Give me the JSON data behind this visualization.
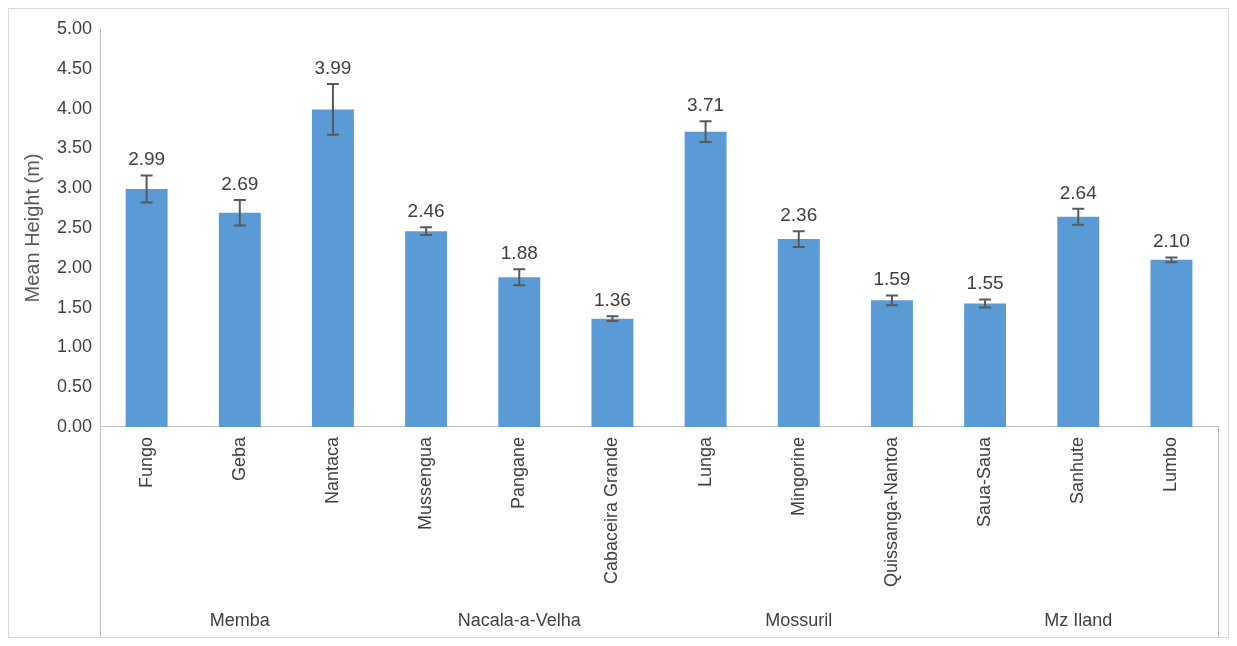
{
  "chart_data": {
    "type": "bar",
    "ylabel": "Mean Height (m)",
    "categories": [
      "Fungo",
      "Geba",
      "Nantaca",
      "Mussengua",
      "Pangane",
      "Cabaceira Grande",
      "Lunga",
      "Mingorine",
      "Quissanga-Nantoa",
      "Saua-Saua",
      "Sanhute",
      "Lumbo"
    ],
    "values": [
      2.99,
      2.69,
      3.99,
      2.46,
      1.88,
      1.36,
      3.71,
      2.36,
      1.59,
      1.55,
      2.64,
      2.1
    ],
    "value_labels": [
      "2.99",
      "2.69",
      "3.99",
      "2.46",
      "1.88",
      "1.36",
      "3.71",
      "2.36",
      "1.59",
      "1.55",
      "2.64",
      "2.10"
    ],
    "errors": [
      0.17,
      0.16,
      0.32,
      0.05,
      0.1,
      0.03,
      0.13,
      0.1,
      0.06,
      0.05,
      0.1,
      0.03
    ],
    "color": "#5b9bd5",
    "ylim": [
      0,
      5
    ],
    "yticks": [
      {
        "value": 0,
        "label": "0.00"
      },
      {
        "value": 0.5,
        "label": "0.50"
      },
      {
        "value": 1,
        "label": "1.00"
      },
      {
        "value": 1.5,
        "label": "1.50"
      },
      {
        "value": 2,
        "label": "2.00"
      },
      {
        "value": 2.5,
        "label": "2.50"
      },
      {
        "value": 3,
        "label": "3.00"
      },
      {
        "value": 3.5,
        "label": "3.50"
      },
      {
        "value": 4,
        "label": "4.00"
      },
      {
        "value": 4.5,
        "label": "4.50"
      },
      {
        "value": 5,
        "label": "5.00"
      }
    ],
    "annotations": [
      "Memba",
      "Nacala-a-Velha",
      "Mossuril",
      "Mz Iland"
    ]
  }
}
